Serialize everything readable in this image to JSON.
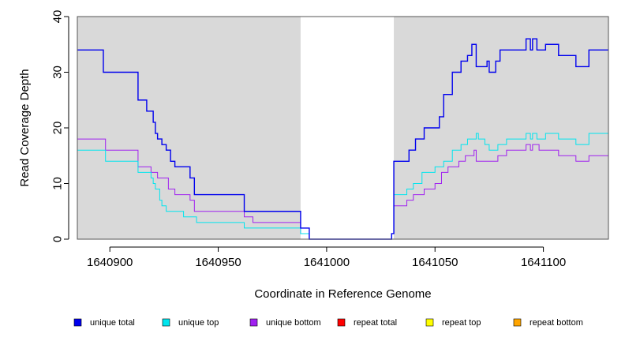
{
  "chart_data": {
    "type": "line",
    "step": true,
    "xlabel": "Coordinate in Reference Genome",
    "ylabel": "Read Coverage Depth",
    "xlim": [
      1640885,
      1641130
    ],
    "ylim": [
      0,
      40
    ],
    "xticks": [
      1640900,
      1640950,
      1641000,
      1641050,
      1641100
    ],
    "yticks": [
      0,
      10,
      20,
      30,
      40
    ],
    "shaded_regions": [
      [
        1640885,
        1640988
      ],
      [
        1641031,
        1641130
      ]
    ],
    "shade_color": "#d9d9d9",
    "legend_placement": "bottom",
    "series": [
      {
        "name": "unique total",
        "color": "#0000ee",
        "points": [
          [
            1640885,
            34
          ],
          [
            1640897,
            30
          ],
          [
            1640913,
            25
          ],
          [
            1640917,
            23
          ],
          [
            1640920,
            21
          ],
          [
            1640921,
            19
          ],
          [
            1640922,
            18
          ],
          [
            1640924,
            17
          ],
          [
            1640926,
            16
          ],
          [
            1640928,
            14
          ],
          [
            1640930,
            13
          ],
          [
            1640937,
            11
          ],
          [
            1640939,
            8
          ],
          [
            1640962,
            7
          ],
          [
            1640962,
            5
          ],
          [
            1640988,
            2
          ],
          [
            1640992,
            0
          ],
          [
            1641030,
            1
          ],
          [
            1641031,
            14
          ],
          [
            1641038,
            16
          ],
          [
            1641041,
            18
          ],
          [
            1641045,
            20
          ],
          [
            1641052,
            22
          ],
          [
            1641054,
            26
          ],
          [
            1641058,
            30
          ],
          [
            1641062,
            32
          ],
          [
            1641065,
            33
          ],
          [
            1641067,
            35
          ],
          [
            1641069,
            31
          ],
          [
            1641074,
            32
          ],
          [
            1641075,
            30
          ],
          [
            1641078,
            32
          ],
          [
            1641080,
            34
          ],
          [
            1641086,
            34
          ],
          [
            1641092,
            36
          ],
          [
            1641094,
            34
          ],
          [
            1641095,
            36
          ],
          [
            1641097,
            34
          ],
          [
            1641101,
            35
          ],
          [
            1641107,
            33
          ],
          [
            1641115,
            31
          ],
          [
            1641121,
            34
          ],
          [
            1641130,
            34
          ]
        ]
      },
      {
        "name": "unique top",
        "color": "#00e5ee",
        "points": [
          [
            1640885,
            16
          ],
          [
            1640898,
            14
          ],
          [
            1640913,
            12
          ],
          [
            1640919,
            11
          ],
          [
            1640920,
            10
          ],
          [
            1640921,
            9
          ],
          [
            1640923,
            7
          ],
          [
            1640924,
            6
          ],
          [
            1640926,
            5
          ],
          [
            1640934,
            4
          ],
          [
            1640940,
            3
          ],
          [
            1640962,
            2
          ],
          [
            1640988,
            1
          ],
          [
            1640992,
            0
          ],
          [
            1641030,
            1
          ],
          [
            1641031,
            8
          ],
          [
            1641037,
            9
          ],
          [
            1641040,
            10
          ],
          [
            1641044,
            12
          ],
          [
            1641050,
            13
          ],
          [
            1641054,
            14
          ],
          [
            1641058,
            16
          ],
          [
            1641062,
            17
          ],
          [
            1641065,
            18
          ],
          [
            1641069,
            19
          ],
          [
            1641070,
            18
          ],
          [
            1641073,
            17
          ],
          [
            1641075,
            16
          ],
          [
            1641079,
            17
          ],
          [
            1641083,
            18
          ],
          [
            1641092,
            19
          ],
          [
            1641094,
            18
          ],
          [
            1641095,
            19
          ],
          [
            1641097,
            18
          ],
          [
            1641101,
            19
          ],
          [
            1641107,
            18
          ],
          [
            1641115,
            17
          ],
          [
            1641121,
            19
          ],
          [
            1641130,
            19
          ]
        ]
      },
      {
        "name": "unique bottom",
        "color": "#a020f0",
        "points": [
          [
            1640885,
            18
          ],
          [
            1640898,
            16
          ],
          [
            1640913,
            13
          ],
          [
            1640919,
            12
          ],
          [
            1640922,
            11
          ],
          [
            1640927,
            9
          ],
          [
            1640930,
            8
          ],
          [
            1640937,
            7
          ],
          [
            1640939,
            5
          ],
          [
            1640962,
            4
          ],
          [
            1640966,
            3
          ],
          [
            1640988,
            1
          ],
          [
            1640992,
            0
          ],
          [
            1641030,
            1
          ],
          [
            1641031,
            6
          ],
          [
            1641037,
            7
          ],
          [
            1641040,
            8
          ],
          [
            1641045,
            9
          ],
          [
            1641050,
            10
          ],
          [
            1641053,
            12
          ],
          [
            1641056,
            13
          ],
          [
            1641061,
            14
          ],
          [
            1641064,
            15
          ],
          [
            1641068,
            16
          ],
          [
            1641069,
            14
          ],
          [
            1641075,
            14
          ],
          [
            1641079,
            15
          ],
          [
            1641083,
            16
          ],
          [
            1641092,
            17
          ],
          [
            1641094,
            16
          ],
          [
            1641095,
            17
          ],
          [
            1641098,
            16
          ],
          [
            1641107,
            15
          ],
          [
            1641115,
            14
          ],
          [
            1641121,
            15
          ],
          [
            1641130,
            15
          ]
        ]
      },
      {
        "name": "repeat total",
        "color": "#ff0000",
        "points": [
          [
            1640885,
            0
          ],
          [
            1641130,
            0
          ]
        ]
      },
      {
        "name": "repeat top",
        "color": "#ffff00",
        "points": [
          [
            1640885,
            0
          ],
          [
            1641130,
            0
          ]
        ]
      },
      {
        "name": "repeat bottom",
        "color": "#ffa500",
        "points": [
          [
            1640885,
            0
          ],
          [
            1641130,
            0
          ]
        ]
      }
    ]
  }
}
